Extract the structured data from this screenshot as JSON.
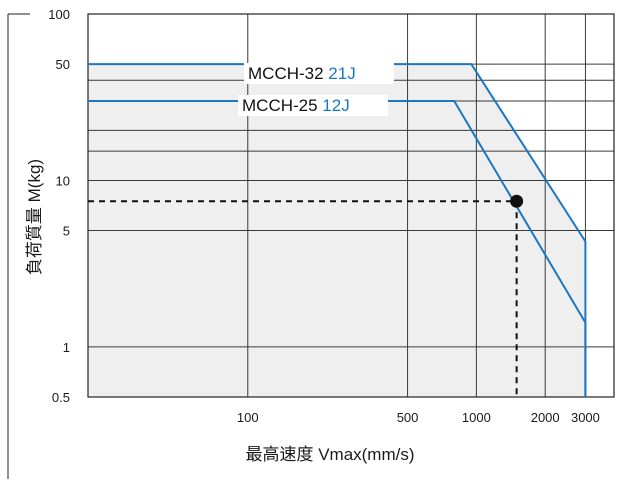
{
  "chart_data": {
    "type": "line",
    "title": "",
    "xlabel": "最高速度  Vmax(mm/s)",
    "ylabel": "負荷質量  M(kg)",
    "x_scale": "log",
    "y_scale": "log",
    "xlim": [
      20,
      4000
    ],
    "ylim": [
      0.5,
      100
    ],
    "x_ticks": [
      {
        "value": 100,
        "label": "100"
      },
      {
        "value": 500,
        "label": "500"
      },
      {
        "value": 1000,
        "label": "1000"
      },
      {
        "value": 2000,
        "label": "2000"
      },
      {
        "value": 3000,
        "label": "3000"
      }
    ],
    "y_ticks": [
      {
        "value": 0.5,
        "label": "0.5"
      },
      {
        "value": 1,
        "label": "1"
      },
      {
        "value": 5,
        "label": "5"
      },
      {
        "value": 10,
        "label": "10"
      },
      {
        "value": 50,
        "label": "50"
      },
      {
        "value": 100,
        "label": "100"
      }
    ],
    "x_gridlines": [
      100,
      500,
      1000,
      2000,
      3000
    ],
    "y_gridlines": [
      0.5,
      1,
      5,
      10,
      15,
      20,
      30,
      40,
      50,
      100
    ],
    "grid": true,
    "series": [
      {
        "name": "MCCH-32 21J",
        "label_parts": [
          "MCCH-32",
          "21J"
        ],
        "x": [
          20,
          950,
          3000,
          3000
        ],
        "y": [
          50,
          50,
          4.3,
          0.5
        ],
        "color": "#1a78c2"
      },
      {
        "name": "MCCH-25 12J",
        "label_parts": [
          "MCCH-25",
          "12J"
        ],
        "x": [
          20,
          800,
          3000,
          3000
        ],
        "y": [
          30,
          30,
          1.4,
          0.5
        ],
        "color": "#1a78c2"
      }
    ],
    "example_point": {
      "x": 1500,
      "y": 7.5
    },
    "fill_color": "#efefef",
    "grid_color": "#3a3a3a"
  }
}
